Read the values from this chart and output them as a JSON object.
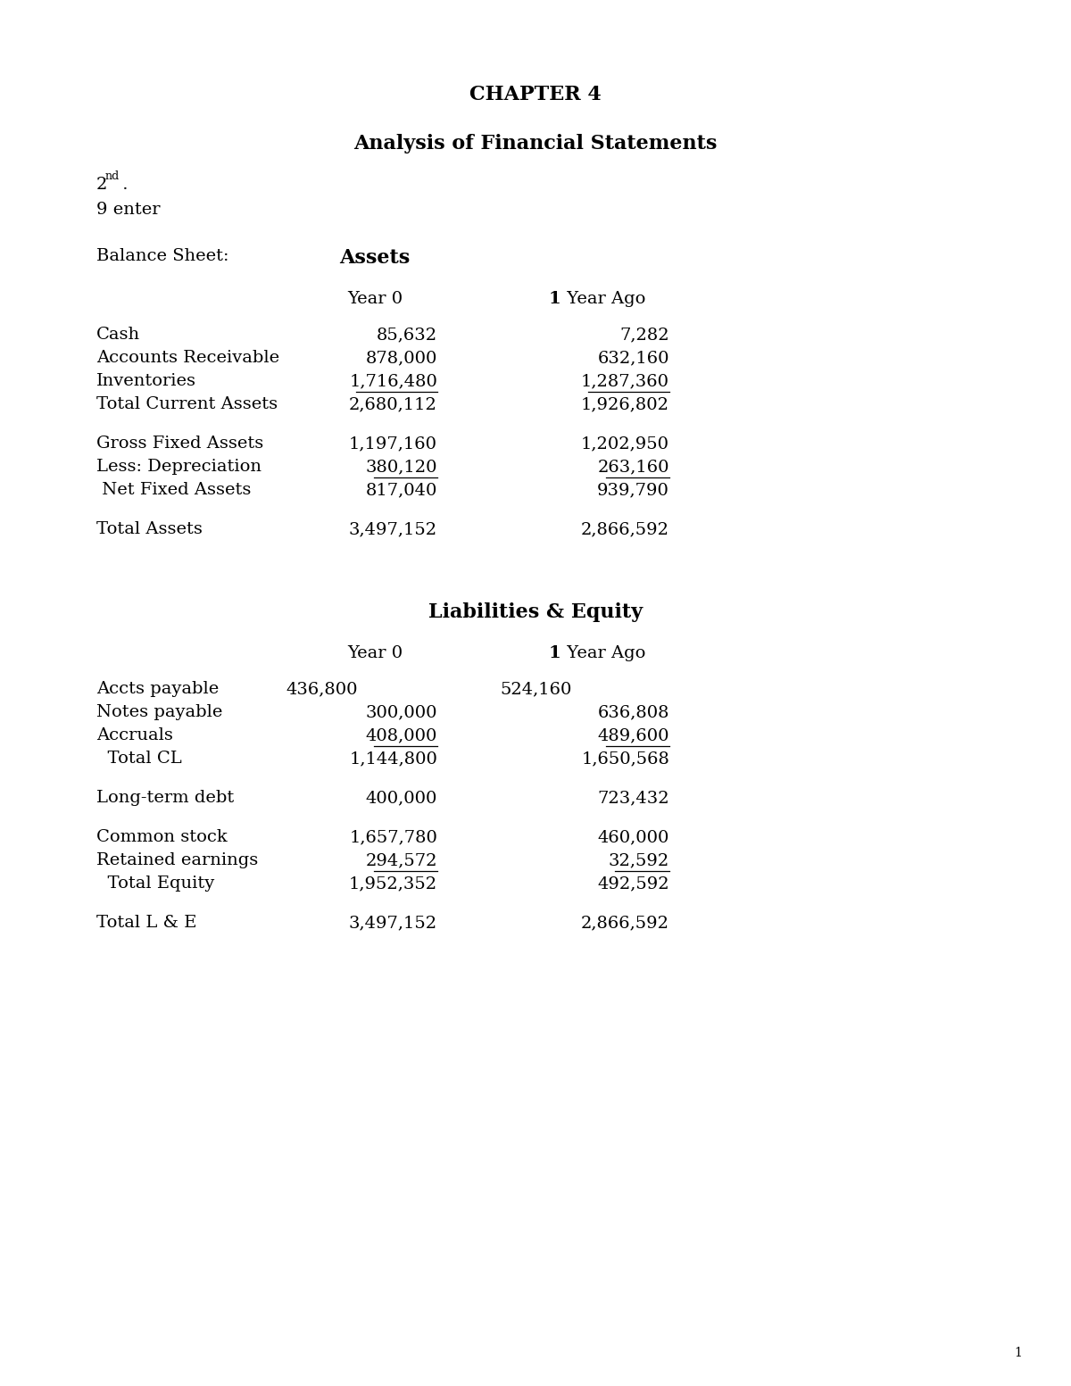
{
  "bg_color": "#ffffff",
  "title": "CHAPTER 4",
  "subtitle": "Analysis of Financial Statements",
  "note1": "2",
  "note1_super": "nd",
  "note1_dot": " .",
  "note2": "9 enter",
  "section1_left": "Balance Sheet:",
  "section1_center": "Assets",
  "col_header_year0": "Year 0",
  "col_header_year1": "1 Year Ago",
  "assets_rows": [
    {
      "label": "Cash",
      "indent": false,
      "underline": false,
      "year0": "85,632",
      "year1": "7,282",
      "spacer_before": false
    },
    {
      "label": "Accounts Receivable",
      "indent": false,
      "underline": false,
      "year0": "878,000",
      "year1": "632,160",
      "spacer_before": false
    },
    {
      "label": "Inventories",
      "indent": false,
      "underline": true,
      "year0": "1,716,480",
      "year1": "1,287,360",
      "spacer_before": false
    },
    {
      "label": "Total Current Assets",
      "indent": false,
      "underline": false,
      "year0": "2,680,112",
      "year1": "1,926,802",
      "spacer_before": false
    },
    {
      "label": "Gross Fixed Assets",
      "indent": false,
      "underline": false,
      "year0": "1,197,160",
      "year1": "1,202,950",
      "spacer_before": true
    },
    {
      "label": "Less: Depreciation",
      "indent": false,
      "underline": true,
      "year0": "380,120",
      "year1": "263,160",
      "spacer_before": false
    },
    {
      "label": " Net Fixed Assets",
      "indent": false,
      "underline": false,
      "year0": "817,040",
      "year1": "939,790",
      "spacer_before": false
    },
    {
      "label": "Total Assets",
      "indent": false,
      "underline": false,
      "year0": "3,497,152",
      "year1": "2,866,592",
      "spacer_before": true
    }
  ],
  "section2_center": "Liabilities & Equity",
  "liabilities_rows": [
    {
      "label": "Accts payable",
      "underline": false,
      "year0": "436,800",
      "year1": "524,160",
      "spacer_before": false,
      "year0_left": true,
      "year1_left": true
    },
    {
      "label": "Notes payable",
      "underline": false,
      "year0": "300,000",
      "year1": "636,808",
      "spacer_before": false,
      "year0_left": false,
      "year1_left": false
    },
    {
      "label": "Accruals",
      "underline": true,
      "year0": "408,000",
      "year1": "489,600",
      "spacer_before": false,
      "year0_left": false,
      "year1_left": false
    },
    {
      "label": "  Total CL",
      "underline": false,
      "year0": "1,144,800",
      "year1": "1,650,568",
      "spacer_before": false,
      "year0_left": false,
      "year1_left": false
    },
    {
      "label": "Long-term debt",
      "underline": false,
      "year0": "400,000",
      "year1": "723,432",
      "spacer_before": true,
      "year0_left": false,
      "year1_left": false
    },
    {
      "label": "Common stock",
      "underline": false,
      "year0": "1,657,780",
      "year1": "460,000",
      "spacer_before": true,
      "year0_left": false,
      "year1_left": false
    },
    {
      "label": "Retained earnings",
      "underline": true,
      "year0": "294,572",
      "year1": "32,592",
      "spacer_before": false,
      "year0_left": false,
      "year1_left": false
    },
    {
      "label": "  Total Equity",
      "underline": false,
      "year0": "1,952,352",
      "year1": "492,592",
      "spacer_before": false,
      "year0_left": false,
      "year1_left": false
    },
    {
      "label": "Total L & E",
      "underline": false,
      "year0": "3,497,152",
      "year1": "2,866,592",
      "spacer_before": true,
      "year0_left": false,
      "year1_left": false
    }
  ],
  "page_number": "1",
  "font_size": 14,
  "font_family": "DejaVu Serif"
}
